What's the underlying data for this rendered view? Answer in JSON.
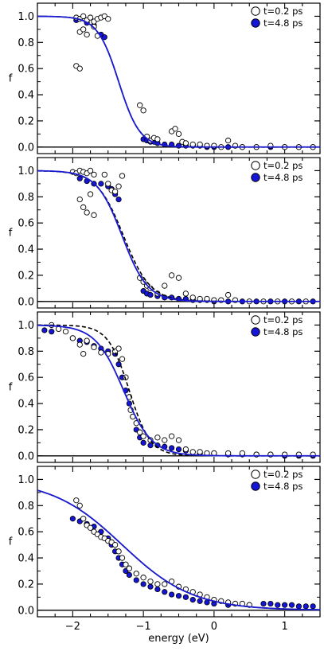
{
  "chart_data": {
    "type": "scatter",
    "layout": "four vertically stacked panels sharing the energy axis",
    "xlabel": "energy (eV)",
    "xlim": [
      -2.5,
      1.5
    ],
    "xticks": [
      -2,
      -1,
      0,
      1
    ],
    "xtick_labels": [
      "−2",
      "−1",
      "0",
      "1"
    ],
    "colors": {
      "open_marker": "#ffffff",
      "filled_marker": "#1515d8",
      "fit_line": "#1a1ad0",
      "dashed_line": "#000000"
    },
    "panels": [
      {
        "ylabel": "f",
        "ylim": [
          -0.05,
          1.1
        ],
        "yticks": [
          0.0,
          0.2,
          0.4,
          0.6,
          0.8,
          1.0
        ],
        "ytick_labels": [
          "0.0",
          "0.2",
          "0.4",
          "0.6",
          "0.8",
          "1.0"
        ],
        "legend": {
          "position": "top-right",
          "entries": [
            "t=0.2 ps",
            "t=4.8 ps"
          ]
        },
        "series": [
          {
            "name": "t=0.2 ps",
            "marker": "open circle",
            "x": [
              -1.95,
              -1.9,
              -1.85,
              -1.8,
              -1.75,
              -1.7,
              -1.65,
              -1.6,
              -1.55,
              -1.5,
              -1.9,
              -1.85,
              -1.8,
              -1.7,
              -1.65,
              -1.95,
              -1.9,
              -1.05,
              -1.0,
              -0.95,
              -0.9,
              -0.85,
              -0.8,
              -0.6,
              -0.55,
              -0.5,
              -0.45,
              -0.4,
              -0.3,
              -0.2,
              -0.1,
              0.0,
              0.1,
              0.2,
              0.3,
              0.4,
              0.6,
              0.8,
              1.0,
              1.2,
              1.4
            ],
            "y": [
              0.99,
              0.98,
              1.0,
              0.97,
              0.99,
              0.96,
              0.98,
              0.99,
              1.0,
              0.98,
              0.88,
              0.9,
              0.86,
              0.92,
              0.85,
              0.62,
              0.6,
              0.32,
              0.28,
              0.08,
              0.05,
              0.07,
              0.06,
              0.12,
              0.14,
              0.1,
              0.04,
              0.03,
              0.02,
              0.02,
              0.01,
              0.01,
              0.0,
              0.05,
              0.01,
              0.0,
              0.0,
              0.01,
              0.0,
              0.0,
              0.0
            ]
          },
          {
            "name": "t=4.8 ps",
            "marker": "filled circle",
            "x": [
              -1.95,
              -1.9,
              -1.8,
              -1.7,
              -1.6,
              -1.55,
              -1.0,
              -0.95,
              -0.9,
              -0.85,
              -0.8,
              -0.7,
              -0.6,
              -0.5,
              -0.4,
              -0.3,
              -0.2,
              -0.1,
              0.0,
              0.2,
              0.4,
              0.6,
              0.8,
              1.0,
              1.2,
              1.4
            ],
            "y": [
              0.97,
              0.98,
              0.95,
              0.93,
              0.86,
              0.84,
              0.06,
              0.05,
              0.04,
              0.04,
              0.03,
              0.02,
              0.02,
              0.01,
              0.01,
              0.01,
              0.01,
              0.0,
              0.0,
              0.0,
              0.0,
              0.0,
              0.0,
              0.0,
              0.0,
              0.0
            ]
          }
        ],
        "fit_solid": {
          "mu": -1.35,
          "kT": 0.15,
          "low": 0.0,
          "high": 1.0
        },
        "fit_dashed": {
          "mu": -1.35,
          "kT": 0.15,
          "low": 0.0,
          "high": 1.0
        }
      },
      {
        "ylabel": "f",
        "ylim": [
          -0.05,
          1.1
        ],
        "yticks": [
          0.0,
          0.2,
          0.4,
          0.6,
          0.8,
          1.0
        ],
        "ytick_labels": [
          "0.0",
          "0.2",
          "0.4",
          "0.6",
          "0.8",
          "1.0"
        ],
        "legend": {
          "position": "top-right",
          "entries": [
            "t=0.2 ps",
            "t=4.8 ps"
          ]
        },
        "series": [
          {
            "name": "t=0.2 ps",
            "marker": "open circle",
            "x": [
              -2.0,
              -1.95,
              -1.9,
              -1.85,
              -1.8,
              -1.75,
              -1.7,
              -1.9,
              -1.85,
              -1.8,
              -1.75,
              -1.7,
              -1.55,
              -1.5,
              -1.45,
              -1.4,
              -1.35,
              -1.3,
              -1.05,
              -1.0,
              -0.95,
              -0.9,
              -0.8,
              -0.7,
              -0.6,
              -0.5,
              -0.4,
              -0.3,
              -0.2,
              -0.1,
              0.0,
              0.1,
              0.2,
              0.3,
              0.5,
              0.7,
              0.9,
              1.1,
              1.3
            ],
            "y": [
              0.99,
              0.98,
              1.0,
              0.99,
              0.98,
              1.0,
              0.97,
              0.78,
              0.72,
              0.68,
              0.82,
              0.66,
              0.97,
              0.9,
              0.85,
              0.84,
              0.88,
              0.96,
              0.18,
              0.15,
              0.12,
              0.1,
              0.06,
              0.12,
              0.2,
              0.18,
              0.06,
              0.03,
              0.02,
              0.02,
              0.01,
              0.01,
              0.05,
              0.01,
              0.0,
              0.0,
              0.0,
              0.0,
              0.0
            ]
          },
          {
            "name": "t=4.8 ps",
            "marker": "filled circle",
            "x": [
              -1.9,
              -1.8,
              -1.7,
              -1.6,
              -1.5,
              -1.45,
              -1.4,
              -1.35,
              -1.0,
              -0.95,
              -0.9,
              -0.8,
              -0.7,
              -0.6,
              -0.5,
              -0.4,
              -0.3,
              -0.2,
              -0.1,
              0.0,
              0.2,
              0.4,
              0.6,
              0.8,
              1.0,
              1.2,
              1.4
            ],
            "y": [
              0.94,
              0.92,
              0.9,
              0.9,
              0.88,
              0.86,
              0.82,
              0.78,
              0.08,
              0.06,
              0.05,
              0.04,
              0.03,
              0.03,
              0.02,
              0.02,
              0.01,
              0.01,
              0.01,
              0.0,
              0.0,
              0.0,
              0.0,
              0.0,
              0.0,
              0.0,
              0.0
            ]
          }
        ],
        "fit_solid": {
          "mu": -1.3,
          "kT": 0.18,
          "low": 0.0,
          "high": 1.0
        },
        "fit_dashed": {
          "mu": -1.28,
          "kT": 0.19,
          "low": 0.0,
          "high": 1.0
        }
      },
      {
        "ylabel": "f",
        "ylim": [
          -0.05,
          1.1
        ],
        "yticks": [
          0.0,
          0.2,
          0.4,
          0.6,
          0.8,
          1.0
        ],
        "ytick_labels": [
          "0.0",
          "0.2",
          "0.4",
          "0.6",
          "0.8",
          "1.0"
        ],
        "legend": {
          "position": "top-right",
          "entries": [
            "t=0.2 ps",
            "t=4.8 ps"
          ]
        },
        "series": [
          {
            "name": "t=0.2 ps",
            "marker": "open circle",
            "x": [
              -2.3,
              -2.2,
              -2.1,
              -2.0,
              -1.9,
              -1.85,
              -1.8,
              -1.7,
              -1.6,
              -1.5,
              -1.4,
              -1.35,
              -1.3,
              -1.25,
              -1.2,
              -1.18,
              -1.15,
              -1.1,
              -1.05,
              -1.0,
              -0.9,
              -0.8,
              -0.7,
              -0.6,
              -0.5,
              -0.4,
              -0.3,
              -0.2,
              -0.1,
              0.0,
              0.2,
              0.4,
              0.6,
              0.8,
              1.0,
              1.2,
              1.4
            ],
            "y": [
              1.0,
              0.97,
              0.95,
              0.9,
              0.85,
              0.78,
              0.88,
              0.83,
              0.79,
              0.78,
              0.8,
              0.82,
              0.74,
              0.6,
              0.45,
              0.35,
              0.3,
              0.25,
              0.18,
              0.15,
              0.12,
              0.14,
              0.12,
              0.15,
              0.12,
              0.05,
              0.03,
              0.03,
              0.02,
              0.02,
              0.02,
              0.02,
              0.01,
              0.01,
              0.01,
              0.01,
              0.01
            ]
          },
          {
            "name": "t=4.8 ps",
            "marker": "filled circle",
            "x": [
              -2.4,
              -2.3,
              -2.0,
              -1.9,
              -1.8,
              -1.7,
              -1.6,
              -1.5,
              -1.4,
              -1.35,
              -1.3,
              -1.25,
              -1.2,
              -1.15,
              -1.1,
              -1.05,
              -1.0,
              -0.9,
              -0.8,
              -0.7,
              -0.6,
              -0.5,
              -0.4,
              -0.2,
              0.0,
              0.2,
              0.4,
              0.6,
              0.8,
              1.0,
              1.2,
              1.4
            ],
            "y": [
              0.96,
              0.95,
              0.9,
              0.88,
              0.87,
              0.84,
              0.82,
              0.8,
              0.78,
              0.7,
              0.6,
              0.5,
              0.4,
              0.3,
              0.2,
              0.14,
              0.1,
              0.08,
              0.08,
              0.07,
              0.06,
              0.05,
              0.04,
              0.02,
              0.02,
              0.01,
              0.01,
              0.01,
              0.01,
              0.0,
              0.0,
              0.0
            ]
          }
        ],
        "fit_solid": {
          "mu": -1.28,
          "kT": 0.2,
          "low": 0.0,
          "high": 1.0
        },
        "fit_dashed": {
          "mu": -1.2,
          "kT": 0.15,
          "low": 0.0,
          "high": 1.0
        }
      },
      {
        "ylabel": "f",
        "ylim": [
          -0.05,
          1.1
        ],
        "yticks": [
          0.0,
          0.2,
          0.4,
          0.6,
          0.8,
          1.0
        ],
        "ytick_labels": [
          "0.0",
          "0.2",
          "0.4",
          "0.6",
          "0.8",
          "1.0"
        ],
        "legend": {
          "position": "top-right",
          "entries": [
            "t=0.2 ps",
            "t=4.8 ps"
          ]
        },
        "series": [
          {
            "name": "t=0.2 ps",
            "marker": "open circle",
            "x": [
              -1.95,
              -1.9,
              -1.85,
              -1.8,
              -1.75,
              -1.7,
              -1.65,
              -1.6,
              -1.55,
              -1.5,
              -1.45,
              -1.4,
              -1.35,
              -1.3,
              -1.25,
              -1.2,
              -1.1,
              -1.0,
              -0.9,
              -0.8,
              -0.7,
              -0.6,
              -0.5,
              -0.4,
              -0.3,
              -0.2,
              -0.1,
              0.0,
              0.1,
              0.2,
              0.3,
              0.4,
              0.5
            ],
            "y": [
              0.84,
              0.8,
              0.7,
              0.65,
              0.63,
              0.6,
              0.58,
              0.56,
              0.55,
              0.53,
              0.52,
              0.5,
              0.45,
              0.4,
              0.35,
              0.32,
              0.28,
              0.25,
              0.22,
              0.2,
              0.2,
              0.22,
              0.18,
              0.16,
              0.14,
              0.12,
              0.1,
              0.08,
              0.07,
              0.06,
              0.05,
              0.05,
              0.04
            ]
          },
          {
            "name": "t=4.8 ps",
            "marker": "filled circle",
            "x": [
              -2.0,
              -1.9,
              -1.8,
              -1.7,
              -1.6,
              -1.5,
              -1.45,
              -1.4,
              -1.35,
              -1.3,
              -1.25,
              -1.2,
              -1.1,
              -1.0,
              -0.9,
              -0.8,
              -0.7,
              -0.6,
              -0.5,
              -0.4,
              -0.3,
              -0.2,
              -0.1,
              0.0,
              0.2,
              0.7,
              0.8,
              0.9,
              1.0,
              1.1,
              1.2,
              1.3,
              1.4
            ],
            "y": [
              0.7,
              0.68,
              0.66,
              0.64,
              0.6,
              0.55,
              0.5,
              0.45,
              0.4,
              0.35,
              0.3,
              0.27,
              0.23,
              0.2,
              0.18,
              0.16,
              0.14,
              0.12,
              0.11,
              0.1,
              0.08,
              0.07,
              0.06,
              0.05,
              0.04,
              0.05,
              0.05,
              0.04,
              0.04,
              0.04,
              0.03,
              0.03,
              0.03
            ]
          }
        ],
        "fit_solid": {
          "mu": -1.3,
          "kT": 0.5,
          "low": 0.0,
          "high": 1.0
        },
        "fit_dashed": {
          "mu": -1.3,
          "kT": 0.5,
          "low": 0.0,
          "high": 1.0
        }
      }
    ]
  }
}
